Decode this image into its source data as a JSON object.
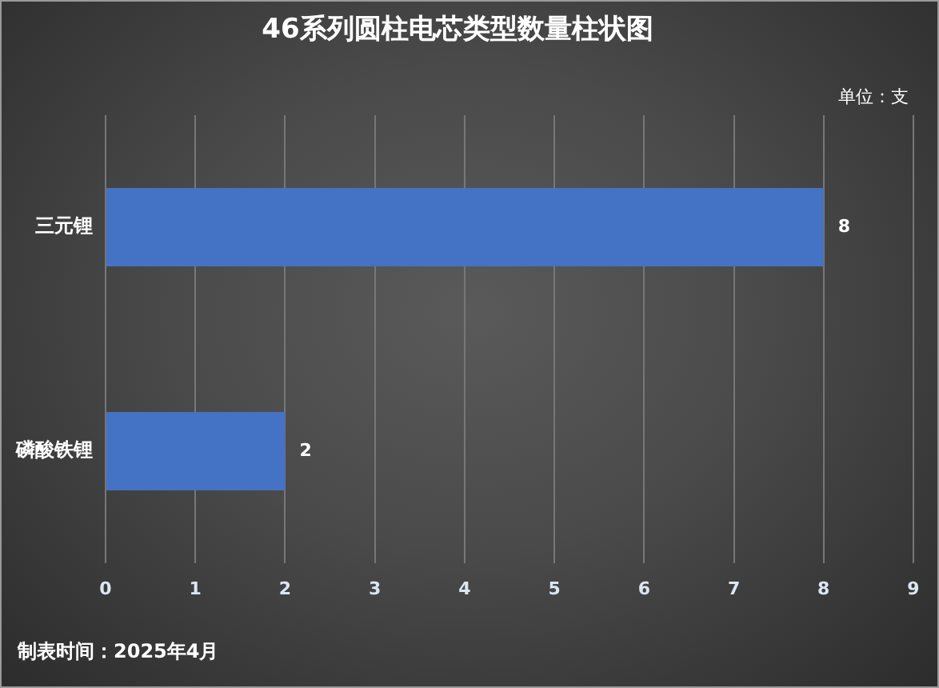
{
  "chart_data": {
    "type": "bar",
    "orientation": "horizontal",
    "title": "46系列圆柱电芯类型数量柱状图",
    "categories": [
      "三元锂",
      "磷酸铁锂"
    ],
    "values": [
      8,
      2
    ],
    "color": "#4472c4",
    "xlim": [
      0,
      9
    ],
    "xticks": [
      0,
      1,
      2,
      3,
      4,
      5,
      6,
      7,
      8,
      9
    ],
    "grid": "x",
    "data_labels": true,
    "legend": false,
    "annotations": [
      "单位：支",
      "制表时间：2025年4月"
    ]
  }
}
